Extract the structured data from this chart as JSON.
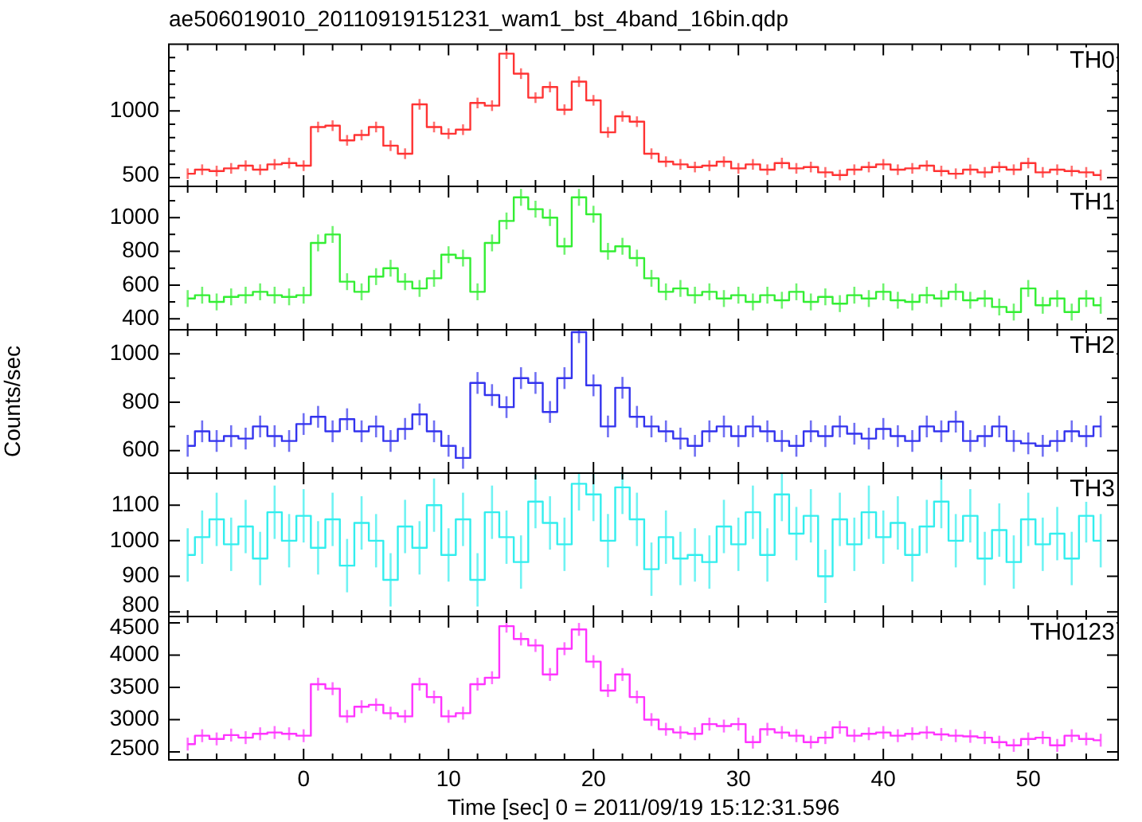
{
  "chart_data": [
    {
      "type": "step",
      "title": "ae506019010_20110919151231_wam1_bst_4band_16bin.qdp",
      "tick_labels": "y",
      "annotations": [
        "TH0"
      ],
      "x": [
        -8,
        -7,
        -6,
        -5,
        -4,
        -3,
        -2,
        -1,
        0,
        1,
        2,
        3,
        4,
        5,
        6,
        7,
        8,
        9,
        10,
        11,
        12,
        13,
        14,
        15,
        16,
        17,
        18,
        19,
        20,
        21,
        22,
        23,
        24,
        25,
        26,
        27,
        28,
        29,
        30,
        31,
        32,
        33,
        34,
        35,
        36,
        37,
        38,
        39,
        40,
        41,
        42,
        43,
        44,
        45,
        46,
        47,
        48,
        49,
        50,
        51,
        52,
        53,
        54,
        55
      ],
      "xlim": [
        -9.3,
        56.2
      ],
      "xticks": [
        {
          "value": -8,
          "label": null
        },
        {
          "value": -6,
          "label": null
        },
        {
          "value": -4,
          "label": null
        },
        {
          "value": -2,
          "label": null
        },
        0,
        {
          "value": 2,
          "label": null
        },
        {
          "value": 4,
          "label": null
        },
        {
          "value": 6,
          "label": null
        },
        {
          "value": 8,
          "label": null
        },
        10,
        {
          "value": 12,
          "label": null
        },
        {
          "value": 14,
          "label": null
        },
        {
          "value": 16,
          "label": null
        },
        {
          "value": 18,
          "label": null
        },
        20,
        {
          "value": 22,
          "label": null
        },
        {
          "value": 24,
          "label": null
        },
        {
          "value": 26,
          "label": null
        },
        {
          "value": 28,
          "label": null
        },
        30,
        {
          "value": 32,
          "label": null
        },
        {
          "value": 34,
          "label": null
        },
        {
          "value": 36,
          "label": null
        },
        {
          "value": 38,
          "label": null
        },
        40,
        {
          "value": 42,
          "label": null
        },
        {
          "value": 44,
          "label": null
        },
        {
          "value": 46,
          "label": null
        },
        {
          "value": 48,
          "label": null
        },
        50,
        {
          "value": 52,
          "label": null
        },
        {
          "value": 54,
          "label": null
        }
      ],
      "ylim": [
        435,
        1500
      ],
      "yticks": [
        500,
        {
          "value": 600,
          "label": null
        },
        {
          "value": 700,
          "label": null
        },
        {
          "value": 800,
          "label": null
        },
        {
          "value": 900,
          "label": null
        },
        1000,
        {
          "value": 1100,
          "label": null
        },
        {
          "value": 1200,
          "label": null
        },
        {
          "value": 1300,
          "label": null
        },
        {
          "value": 1400,
          "label": null
        }
      ],
      "series": [
        {
          "color": "#ff3333",
          "values": [
            530,
            560,
            550,
            570,
            590,
            560,
            600,
            610,
            590,
            880,
            890,
            780,
            820,
            880,
            740,
            680,
            1050,
            880,
            830,
            860,
            1060,
            1040,
            1430,
            1280,
            1100,
            1180,
            1010,
            1220,
            1080,
            840,
            960,
            920,
            680,
            620,
            600,
            580,
            590,
            620,
            570,
            600,
            560,
            610,
            570,
            580,
            540,
            520,
            560,
            580,
            600,
            560,
            570,
            590,
            550,
            530,
            560,
            540,
            580,
            560,
            610,
            540,
            560,
            550,
            540,
            520
          ],
          "errors": [
            40,
            40,
            40,
            40,
            40,
            40,
            40,
            40,
            40,
            40,
            40,
            40,
            40,
            40,
            40,
            40,
            40,
            40,
            40,
            40,
            40,
            40,
            40,
            40,
            40,
            40,
            40,
            40,
            40,
            40,
            40,
            40,
            40,
            40,
            40,
            40,
            40,
            40,
            40,
            40,
            40,
            40,
            40,
            40,
            40,
            40,
            40,
            40,
            40,
            40,
            40,
            40,
            40,
            40,
            40,
            40,
            40,
            40,
            40,
            40,
            40,
            40,
            40,
            40
          ]
        }
      ]
    },
    {
      "type": "step",
      "tick_labels": "y",
      "annotations": [
        "TH1"
      ],
      "x": [
        -8,
        -7,
        -6,
        -5,
        -4,
        -3,
        -2,
        -1,
        0,
        1,
        2,
        3,
        4,
        5,
        6,
        7,
        8,
        9,
        10,
        11,
        12,
        13,
        14,
        15,
        16,
        17,
        18,
        19,
        20,
        21,
        22,
        23,
        24,
        25,
        26,
        27,
        28,
        29,
        30,
        31,
        32,
        33,
        34,
        35,
        36,
        37,
        38,
        39,
        40,
        41,
        42,
        43,
        44,
        45,
        46,
        47,
        48,
        49,
        50,
        51,
        52,
        53,
        54,
        55
      ],
      "xlim": [
        -9.3,
        56.2
      ],
      "xticks": [
        {
          "value": -8,
          "label": null
        },
        {
          "value": -6,
          "label": null
        },
        {
          "value": -4,
          "label": null
        },
        {
          "value": -2,
          "label": null
        },
        0,
        {
          "value": 2,
          "label": null
        },
        {
          "value": 4,
          "label": null
        },
        {
          "value": 6,
          "label": null
        },
        {
          "value": 8,
          "label": null
        },
        10,
        {
          "value": 12,
          "label": null
        },
        {
          "value": 14,
          "label": null
        },
        {
          "value": 16,
          "label": null
        },
        {
          "value": 18,
          "label": null
        },
        20,
        {
          "value": 22,
          "label": null
        },
        {
          "value": 24,
          "label": null
        },
        {
          "value": 26,
          "label": null
        },
        {
          "value": 28,
          "label": null
        },
        30,
        {
          "value": 32,
          "label": null
        },
        {
          "value": 34,
          "label": null
        },
        {
          "value": 36,
          "label": null
        },
        {
          "value": 38,
          "label": null
        },
        40,
        {
          "value": 42,
          "label": null
        },
        {
          "value": 44,
          "label": null
        },
        {
          "value": 46,
          "label": null
        },
        {
          "value": 48,
          "label": null
        },
        50,
        {
          "value": 52,
          "label": null
        },
        {
          "value": 54,
          "label": null
        }
      ],
      "ylim": [
        335,
        1185
      ],
      "yticks": [
        400,
        {
          "value": 500,
          "label": null
        },
        600,
        {
          "value": 700,
          "label": null
        },
        800,
        {
          "value": 900,
          "label": null
        },
        1000,
        {
          "value": 1100,
          "label": null
        }
      ],
      "series": [
        {
          "color": "#33ee33",
          "values": [
            520,
            540,
            500,
            530,
            540,
            560,
            540,
            530,
            540,
            850,
            900,
            620,
            560,
            650,
            700,
            620,
            580,
            640,
            780,
            760,
            560,
            850,
            980,
            1120,
            1050,
            1000,
            830,
            1120,
            1020,
            800,
            830,
            760,
            640,
            560,
            580,
            540,
            560,
            520,
            540,
            500,
            540,
            510,
            560,
            500,
            530,
            490,
            540,
            520,
            560,
            510,
            500,
            540,
            520,
            560,
            510,
            520,
            470,
            440,
            580,
            480,
            520,
            440,
            520,
            480
          ],
          "errors": [
            50,
            50,
            50,
            50,
            50,
            50,
            50,
            50,
            50,
            50,
            50,
            50,
            50,
            50,
            50,
            50,
            50,
            50,
            50,
            50,
            50,
            50,
            50,
            50,
            50,
            50,
            50,
            50,
            50,
            50,
            50,
            50,
            50,
            50,
            50,
            50,
            50,
            50,
            50,
            50,
            50,
            50,
            50,
            50,
            50,
            50,
            50,
            50,
            50,
            50,
            50,
            50,
            50,
            50,
            50,
            50,
            50,
            50,
            50,
            50,
            50,
            50,
            50,
            50
          ]
        }
      ]
    },
    {
      "type": "step",
      "tick_labels": "y",
      "ylabel": "Counts/sec",
      "annotations": [
        "TH2"
      ],
      "x": [
        -8,
        -7,
        -6,
        -5,
        -4,
        -3,
        -2,
        -1,
        0,
        1,
        2,
        3,
        4,
        5,
        6,
        7,
        8,
        9,
        10,
        11,
        12,
        13,
        14,
        15,
        16,
        17,
        18,
        19,
        20,
        21,
        22,
        23,
        24,
        25,
        26,
        27,
        28,
        29,
        30,
        31,
        32,
        33,
        34,
        35,
        36,
        37,
        38,
        39,
        40,
        41,
        42,
        43,
        44,
        45,
        46,
        47,
        48,
        49,
        50,
        51,
        52,
        53,
        54,
        55
      ],
      "xlim": [
        -9.3,
        56.2
      ],
      "xticks": [
        {
          "value": -8,
          "label": null
        },
        {
          "value": -6,
          "label": null
        },
        {
          "value": -4,
          "label": null
        },
        {
          "value": -2,
          "label": null
        },
        0,
        {
          "value": 2,
          "label": null
        },
        {
          "value": 4,
          "label": null
        },
        {
          "value": 6,
          "label": null
        },
        {
          "value": 8,
          "label": null
        },
        10,
        {
          "value": 12,
          "label": null
        },
        {
          "value": 14,
          "label": null
        },
        {
          "value": 16,
          "label": null
        },
        {
          "value": 18,
          "label": null
        },
        20,
        {
          "value": 22,
          "label": null
        },
        {
          "value": 24,
          "label": null
        },
        {
          "value": 26,
          "label": null
        },
        {
          "value": 28,
          "label": null
        },
        30,
        {
          "value": 32,
          "label": null
        },
        {
          "value": 34,
          "label": null
        },
        {
          "value": 36,
          "label": null
        },
        {
          "value": 38,
          "label": null
        },
        40,
        {
          "value": 42,
          "label": null
        },
        {
          "value": 44,
          "label": null
        },
        {
          "value": 46,
          "label": null
        },
        {
          "value": 48,
          "label": null
        },
        50,
        {
          "value": 52,
          "label": null
        },
        {
          "value": 54,
          "label": null
        }
      ],
      "ylim": [
        507,
        1100
      ],
      "yticks": [
        600,
        {
          "value": 700,
          "label": null
        },
        800,
        {
          "value": 900,
          "label": null
        },
        1000
      ],
      "series": [
        {
          "color": "#3333ee",
          "values": [
            620,
            680,
            640,
            660,
            650,
            700,
            660,
            640,
            710,
            740,
            680,
            730,
            680,
            700,
            640,
            690,
            750,
            680,
            620,
            570,
            880,
            830,
            780,
            900,
            880,
            760,
            900,
            1090,
            870,
            700,
            860,
            740,
            700,
            680,
            650,
            620,
            680,
            700,
            660,
            700,
            680,
            640,
            620,
            680,
            660,
            700,
            670,
            650,
            690,
            660,
            640,
            700,
            680,
            720,
            640,
            660,
            700,
            640,
            630,
            620,
            640,
            680,
            660,
            700
          ],
          "errors": [
            45,
            45,
            45,
            45,
            45,
            45,
            45,
            45,
            45,
            45,
            45,
            45,
            45,
            45,
            45,
            45,
            45,
            45,
            45,
            45,
            45,
            45,
            45,
            45,
            45,
            45,
            45,
            45,
            45,
            45,
            45,
            45,
            45,
            45,
            45,
            45,
            45,
            45,
            45,
            45,
            45,
            45,
            45,
            45,
            45,
            45,
            45,
            45,
            45,
            45,
            45,
            45,
            45,
            45,
            45,
            45,
            45,
            45,
            45,
            45,
            45,
            45,
            45,
            45
          ]
        }
      ]
    },
    {
      "type": "step",
      "tick_labels": "y",
      "annotations": [
        "TH3"
      ],
      "x": [
        -8,
        -7,
        -6,
        -5,
        -4,
        -3,
        -2,
        -1,
        0,
        1,
        2,
        3,
        4,
        5,
        6,
        7,
        8,
        9,
        10,
        11,
        12,
        13,
        14,
        15,
        16,
        17,
        18,
        19,
        20,
        21,
        22,
        23,
        24,
        25,
        26,
        27,
        28,
        29,
        30,
        31,
        32,
        33,
        34,
        35,
        36,
        37,
        38,
        39,
        40,
        41,
        42,
        43,
        44,
        45,
        46,
        47,
        48,
        49,
        50,
        51,
        52,
        53,
        54,
        55
      ],
      "xlim": [
        -9.3,
        56.2
      ],
      "xticks": [
        {
          "value": -8,
          "label": null
        },
        {
          "value": -6,
          "label": null
        },
        {
          "value": -4,
          "label": null
        },
        {
          "value": -2,
          "label": null
        },
        0,
        {
          "value": 2,
          "label": null
        },
        {
          "value": 4,
          "label": null
        },
        {
          "value": 6,
          "label": null
        },
        {
          "value": 8,
          "label": null
        },
        10,
        {
          "value": 12,
          "label": null
        },
        {
          "value": 14,
          "label": null
        },
        {
          "value": 16,
          "label": null
        },
        {
          "value": 18,
          "label": null
        },
        20,
        {
          "value": 22,
          "label": null
        },
        {
          "value": 24,
          "label": null
        },
        {
          "value": 26,
          "label": null
        },
        {
          "value": 28,
          "label": null
        },
        30,
        {
          "value": 32,
          "label": null
        },
        {
          "value": 34,
          "label": null
        },
        {
          "value": 36,
          "label": null
        },
        {
          "value": 38,
          "label": null
        },
        40,
        {
          "value": 42,
          "label": null
        },
        {
          "value": 44,
          "label": null
        },
        {
          "value": 46,
          "label": null
        },
        {
          "value": 48,
          "label": null
        },
        50,
        {
          "value": 52,
          "label": null
        },
        {
          "value": 54,
          "label": null
        }
      ],
      "ylim": [
        787,
        1190
      ],
      "yticks": [
        800,
        900,
        1000,
        1100
      ],
      "series": [
        {
          "color": "#33eeee",
          "values": [
            960,
            1010,
            1060,
            990,
            1040,
            950,
            1080,
            1000,
            1070,
            980,
            1060,
            930,
            1050,
            1000,
            890,
            1040,
            980,
            1100,
            960,
            1060,
            890,
            1080,
            1010,
            940,
            1110,
            1050,
            990,
            1160,
            1130,
            1000,
            1150,
            1060,
            920,
            1010,
            950,
            960,
            940,
            1040,
            990,
            1080,
            960,
            1130,
            1020,
            1070,
            900,
            1060,
            990,
            1080,
            1010,
            1050,
            960,
            1040,
            1110,
            1000,
            1070,
            950,
            1030,
            940,
            1060,
            990,
            1020,
            950,
            1070,
            1000
          ],
          "errors": [
            75,
            75,
            75,
            75,
            75,
            75,
            75,
            75,
            75,
            75,
            75,
            75,
            75,
            75,
            75,
            75,
            75,
            75,
            75,
            75,
            75,
            75,
            75,
            75,
            75,
            75,
            75,
            75,
            75,
            75,
            75,
            75,
            75,
            75,
            75,
            75,
            75,
            75,
            75,
            75,
            75,
            75,
            75,
            75,
            75,
            75,
            75,
            75,
            75,
            75,
            75,
            75,
            75,
            75,
            75,
            75,
            75,
            75,
            75,
            75,
            75,
            75,
            75,
            75
          ]
        }
      ]
    },
    {
      "type": "step",
      "xlabel": "Time [sec] 0 = 2011/09/19 15:12:31.596",
      "annotations": [
        "TH0123"
      ],
      "x": [
        -8,
        -7,
        -6,
        -5,
        -4,
        -3,
        -2,
        -1,
        0,
        1,
        2,
        3,
        4,
        5,
        6,
        7,
        8,
        9,
        10,
        11,
        12,
        13,
        14,
        15,
        16,
        17,
        18,
        19,
        20,
        21,
        22,
        23,
        24,
        25,
        26,
        27,
        28,
        29,
        30,
        31,
        32,
        33,
        34,
        35,
        36,
        37,
        38,
        39,
        40,
        41,
        42,
        43,
        44,
        45,
        46,
        47,
        48,
        49,
        50,
        51,
        52,
        53,
        54,
        55
      ],
      "xlim": [
        -9.3,
        56.2
      ],
      "xticks": [
        {
          "value": -8,
          "label": null
        },
        {
          "value": -6,
          "label": null
        },
        {
          "value": -4,
          "label": null
        },
        {
          "value": -2,
          "label": null
        },
        0,
        {
          "value": 2,
          "label": null
        },
        {
          "value": 4,
          "label": null
        },
        {
          "value": 6,
          "label": null
        },
        {
          "value": 8,
          "label": null
        },
        10,
        {
          "value": 12,
          "label": null
        },
        {
          "value": 14,
          "label": null
        },
        {
          "value": 16,
          "label": null
        },
        {
          "value": 18,
          "label": null
        },
        20,
        {
          "value": 22,
          "label": null
        },
        {
          "value": 24,
          "label": null
        },
        {
          "value": 26,
          "label": null
        },
        {
          "value": 28,
          "label": null
        },
        30,
        {
          "value": 32,
          "label": null
        },
        {
          "value": 34,
          "label": null
        },
        {
          "value": 36,
          "label": null
        },
        {
          "value": 38,
          "label": null
        },
        40,
        {
          "value": 42,
          "label": null
        },
        {
          "value": 44,
          "label": null
        },
        {
          "value": 46,
          "label": null
        },
        {
          "value": 48,
          "label": null
        },
        50,
        {
          "value": 52,
          "label": null
        },
        {
          "value": 54,
          "label": null
        }
      ],
      "ylim": [
        2375,
        4600
      ],
      "yticks": [
        2500,
        3000,
        3500,
        4000,
        4500
      ],
      "series": [
        {
          "color": "#ff33ff",
          "values": [
            2620,
            2750,
            2700,
            2760,
            2720,
            2780,
            2800,
            2780,
            2750,
            3550,
            3480,
            3050,
            3200,
            3230,
            3100,
            3050,
            3550,
            3350,
            3050,
            3100,
            3550,
            3650,
            4450,
            4250,
            4150,
            3700,
            4100,
            4400,
            3900,
            3450,
            3700,
            3350,
            3000,
            2850,
            2800,
            2780,
            2930,
            2900,
            2930,
            2650,
            2850,
            2800,
            2750,
            2650,
            2720,
            2880,
            2750,
            2780,
            2800,
            2750,
            2780,
            2800,
            2770,
            2750,
            2740,
            2720,
            2650,
            2600,
            2700,
            2720,
            2600,
            2750,
            2700,
            2680
          ],
          "errors": [
            100,
            100,
            100,
            100,
            100,
            100,
            100,
            100,
            100,
            100,
            100,
            100,
            100,
            100,
            100,
            100,
            100,
            100,
            100,
            100,
            100,
            100,
            100,
            100,
            100,
            100,
            100,
            100,
            100,
            100,
            100,
            100,
            100,
            100,
            100,
            100,
            100,
            100,
            100,
            100,
            100,
            100,
            100,
            100,
            100,
            100,
            100,
            100,
            100,
            100,
            100,
            100,
            100,
            100,
            100,
            100,
            100,
            100,
            100,
            100,
            100,
            100,
            100,
            100
          ]
        }
      ]
    }
  ]
}
